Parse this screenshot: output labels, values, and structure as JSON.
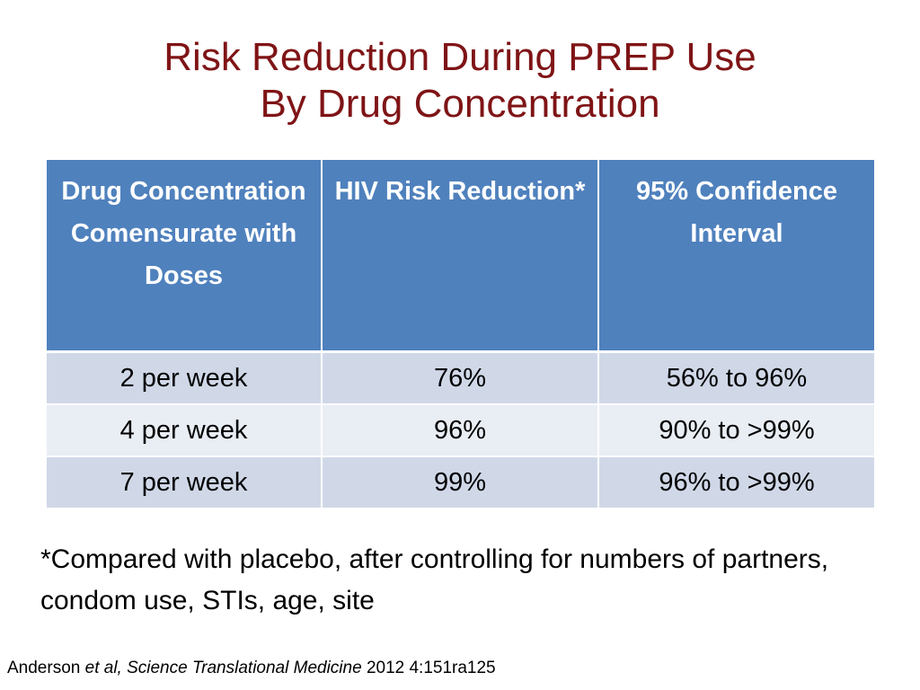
{
  "title": {
    "line1": "Risk Reduction During PREP Use",
    "line2": "By Drug Concentration"
  },
  "table": {
    "headers": [
      "Drug Concentration Comensurate with Doses",
      "HIV Risk Reduction*",
      "95% Confidence Interval"
    ],
    "rows": [
      [
        "2 per week",
        "76%",
        "56% to 96%"
      ],
      [
        "4 per week",
        "96%",
        "90% to >99%"
      ],
      [
        "7 per week",
        "99%",
        "96% to >99%"
      ]
    ]
  },
  "footnote": "*Compared with placebo, after controlling for numbers of partners, condom use, STIs, age, site",
  "citation": {
    "author": "Anderson",
    "etal": "et al, Science Translational Medicine",
    "ref": "2012 4:151ra125"
  },
  "colors": {
    "title": "#7f1416",
    "header_bg": "#4f81bd",
    "row_odd": "#d0d8e8",
    "row_even": "#e9edf4"
  }
}
